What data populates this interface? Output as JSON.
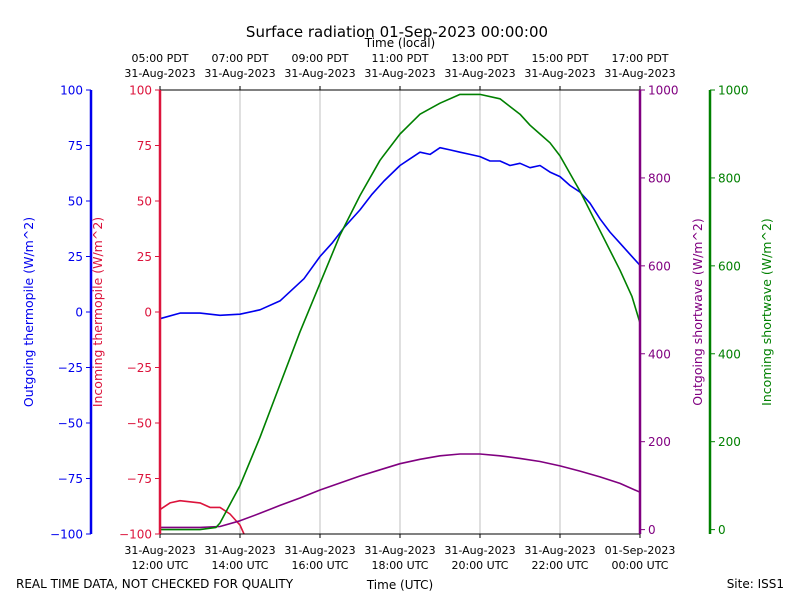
{
  "chart_data": {
    "type": "line",
    "title": "Surface radiation 01-Sep-2023 00:00:00",
    "top_axis_label": "Time (local)",
    "xlabel": "Time (UTC)",
    "footer_left": "REAL TIME DATA, NOT CHECKED FOR QUALITY",
    "footer_right": "Site: ISS1",
    "x_unit": "hours UTC, 31-Aug-2023",
    "xlim": [
      12,
      24
    ],
    "bottom_ticks": [
      {
        "x": 12,
        "line1": "31-Aug-2023",
        "line2": "12:00 UTC"
      },
      {
        "x": 14,
        "line1": "31-Aug-2023",
        "line2": "14:00 UTC"
      },
      {
        "x": 16,
        "line1": "31-Aug-2023",
        "line2": "16:00 UTC"
      },
      {
        "x": 18,
        "line1": "31-Aug-2023",
        "line2": "18:00 UTC"
      },
      {
        "x": 20,
        "line1": "31-Aug-2023",
        "line2": "20:00 UTC"
      },
      {
        "x": 22,
        "line1": "31-Aug-2023",
        "line2": "22:00 UTC"
      },
      {
        "x": 24,
        "line1": "01-Sep-2023",
        "line2": "00:00 UTC"
      }
    ],
    "top_ticks": [
      {
        "x": 12,
        "line1": "05:00 PDT",
        "line2": "31-Aug-2023"
      },
      {
        "x": 14,
        "line1": "07:00 PDT",
        "line2": "31-Aug-2023"
      },
      {
        "x": 16,
        "line1": "09:00 PDT",
        "line2": "31-Aug-2023"
      },
      {
        "x": 18,
        "line1": "11:00 PDT",
        "line2": "31-Aug-2023"
      },
      {
        "x": 20,
        "line1": "13:00 PDT",
        "line2": "31-Aug-2023"
      },
      {
        "x": 22,
        "line1": "15:00 PDT",
        "line2": "31-Aug-2023"
      },
      {
        "x": 24,
        "line1": "17:00 PDT",
        "line2": "31-Aug-2023"
      }
    ],
    "axes": {
      "outgoing_thermopile": {
        "label": "Outgoing thermopile (W/m^2)",
        "color": "#0000ee",
        "ylim": [
          -100,
          100
        ],
        "ticks": [
          "100",
          "75",
          "50",
          "25",
          "0",
          "−25",
          "−50",
          "−75",
          "−100"
        ],
        "tick_values": [
          100,
          75,
          50,
          25,
          0,
          -25,
          -50,
          -75,
          -100
        ]
      },
      "incoming_thermopile": {
        "label": "Incoming thermopile (W/m^2)",
        "color": "#dc143c",
        "ylim": [
          -100,
          100
        ],
        "ticks": [
          "100",
          "75",
          "50",
          "25",
          "0",
          "−25",
          "−50",
          "−75",
          "−100"
        ],
        "tick_values": [
          100,
          75,
          50,
          25,
          0,
          -25,
          -50,
          -75,
          -100
        ]
      },
      "outgoing_shortwave": {
        "label": "Outgoing shortwave (W/m^2)",
        "color": "#800080",
        "ylim": [
          -10,
          1000
        ],
        "ticks": [
          "1000",
          "800",
          "600",
          "400",
          "200",
          "0"
        ],
        "tick_values": [
          1000,
          800,
          600,
          400,
          200,
          0
        ]
      },
      "incoming_shortwave": {
        "label": "Incoming shortwave (W/m^2)",
        "color": "#008000",
        "ylim": [
          -10,
          1000
        ],
        "ticks": [
          "1000",
          "800",
          "600",
          "400",
          "200",
          "0"
        ],
        "tick_values": [
          1000,
          800,
          600,
          400,
          200,
          0
        ]
      }
    },
    "series": [
      {
        "name": "Outgoing thermopile",
        "axis": "outgoing_thermopile",
        "color": "#0000ee",
        "x": [
          12,
          12.5,
          13,
          13.5,
          14,
          14.5,
          15,
          15.3,
          15.6,
          16,
          16.3,
          16.6,
          17,
          17.3,
          17.6,
          18,
          18.25,
          18.5,
          18.75,
          19,
          19.25,
          19.5,
          19.75,
          20,
          20.25,
          20.5,
          20.75,
          21,
          21.25,
          21.5,
          21.75,
          22,
          22.25,
          22.5,
          22.75,
          23,
          23.25,
          23.5,
          23.75,
          24
        ],
        "y": [
          -3,
          -0.5,
          -0.5,
          -1.5,
          -1,
          1,
          5,
          10,
          15,
          25,
          31,
          38,
          46,
          53,
          59,
          66,
          69,
          72,
          71,
          74,
          73,
          72,
          71,
          70,
          68,
          68,
          66,
          67,
          65,
          66,
          63,
          61,
          57,
          54,
          49,
          42,
          36,
          31,
          26,
          21
        ]
      },
      {
        "name": "Incoming thermopile",
        "axis": "incoming_thermopile",
        "color": "#dc143c",
        "x": [
          12,
          12.25,
          12.5,
          12.75,
          13,
          13.25,
          13.5,
          13.75,
          14,
          14.1
        ],
        "y": [
          -89,
          -86,
          -85,
          -85.5,
          -86,
          -88,
          -88,
          -91,
          -96,
          -100
        ]
      },
      {
        "name": "Outgoing shortwave",
        "axis": "outgoing_shortwave",
        "color": "#800080",
        "x": [
          12,
          12.5,
          13,
          13.5,
          14,
          14.5,
          15,
          15.5,
          16,
          16.5,
          17,
          17.5,
          18,
          18.5,
          19,
          19.5,
          20,
          20.5,
          21,
          21.5,
          22,
          22.5,
          23,
          23.5,
          24
        ],
        "y": [
          5,
          5,
          5,
          7,
          20,
          37,
          55,
          72,
          90,
          106,
          122,
          136,
          150,
          160,
          168,
          172,
          172,
          168,
          162,
          155,
          145,
          133,
          120,
          105,
          85
        ]
      },
      {
        "name": "Incoming shortwave",
        "axis": "incoming_shortwave",
        "color": "#008000",
        "x": [
          12,
          12.5,
          13,
          13.4,
          13.5,
          14,
          14.5,
          15,
          15.5,
          16,
          16.5,
          17,
          17.5,
          18,
          18.5,
          19,
          19.5,
          20,
          20.5,
          21,
          21.25,
          21.5,
          21.75,
          22,
          22.5,
          23,
          23.5,
          23.8,
          24
        ],
        "y": [
          0,
          0,
          0,
          5,
          15,
          100,
          210,
          330,
          450,
          560,
          670,
          760,
          840,
          900,
          945,
          970,
          990,
          990,
          980,
          945,
          920,
          900,
          880,
          850,
          770,
          680,
          590,
          530,
          470
        ]
      }
    ]
  }
}
